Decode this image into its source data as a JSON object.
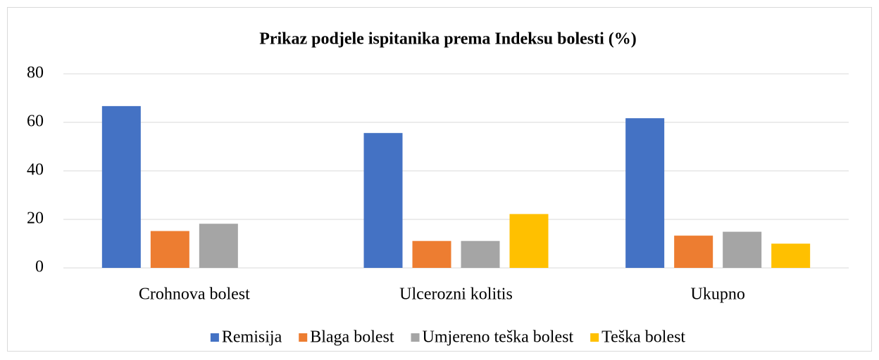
{
  "chart_data": {
    "type": "bar",
    "title": "Prikaz podjele ispitanika prema Indeksu bolesti (%)",
    "categories": [
      "Crohnova bolest",
      "Ulcerozni kolitis",
      "Ukupno"
    ],
    "series": [
      {
        "name": "Remisija",
        "color": "#4472c4",
        "values": [
          66.7,
          55.6,
          61.7
        ]
      },
      {
        "name": "Blaga bolest",
        "color": "#ed7d31",
        "values": [
          15.2,
          11.1,
          13.3
        ]
      },
      {
        "name": "Umjereno teška bolest",
        "color": "#a5a5a5",
        "values": [
          18.2,
          11.1,
          14.9
        ]
      },
      {
        "name": "Teška bolest",
        "color": "#ffc000",
        "values": [
          0,
          22.2,
          10.0
        ]
      }
    ],
    "ylim": [
      0,
      80
    ],
    "yticks": [
      0,
      20,
      40,
      60,
      80
    ],
    "grid": true,
    "legend": "bottom"
  }
}
